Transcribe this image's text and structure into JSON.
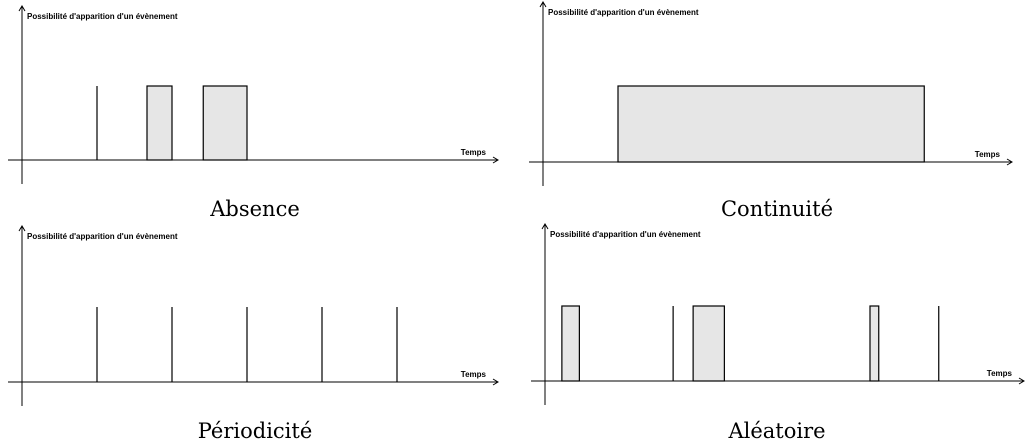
{
  "panels": [
    {
      "id": "absence",
      "caption": "Absence",
      "y_axis_label": "Possibilité d'apparition d'un évènement",
      "x_axis_label": "Temps",
      "events": [
        {
          "type": "instant",
          "t": 1.2
        },
        {
          "type": "interval",
          "start": 2.0,
          "end": 2.4
        },
        {
          "type": "interval",
          "start": 2.9,
          "end": 3.6
        }
      ]
    },
    {
      "id": "continuite",
      "caption": "Continuité",
      "y_axis_label": "Possibilité d'apparition d'un évènement",
      "x_axis_label": "Temps",
      "events": [
        {
          "type": "interval",
          "start": 1.2,
          "end": 6.1
        }
      ]
    },
    {
      "id": "periodicite",
      "caption": "Périodicité",
      "y_axis_label": "Possibilité d'apparition d'un évènement",
      "x_axis_label": "Temps",
      "events": [
        {
          "type": "instant",
          "t": 1.2
        },
        {
          "type": "instant",
          "t": 2.4
        },
        {
          "type": "instant",
          "t": 3.6
        },
        {
          "type": "instant",
          "t": 4.8
        },
        {
          "type": "instant",
          "t": 6.0
        }
      ]
    },
    {
      "id": "aleatoire",
      "caption": "Aléatoire",
      "y_axis_label": "Possibilité d'apparition d'un évènement",
      "x_axis_label": "Temps",
      "events": [
        {
          "type": "interval",
          "start": 0.27,
          "end": 0.55
        },
        {
          "type": "instant",
          "t": 2.05
        },
        {
          "type": "interval",
          "start": 2.37,
          "end": 2.87
        },
        {
          "type": "interval",
          "start": 5.2,
          "end": 5.34
        },
        {
          "type": "instant",
          "t": 6.3
        }
      ]
    }
  ],
  "time_range": [
    0,
    7.7
  ],
  "block_color": "#e6e6e6"
}
